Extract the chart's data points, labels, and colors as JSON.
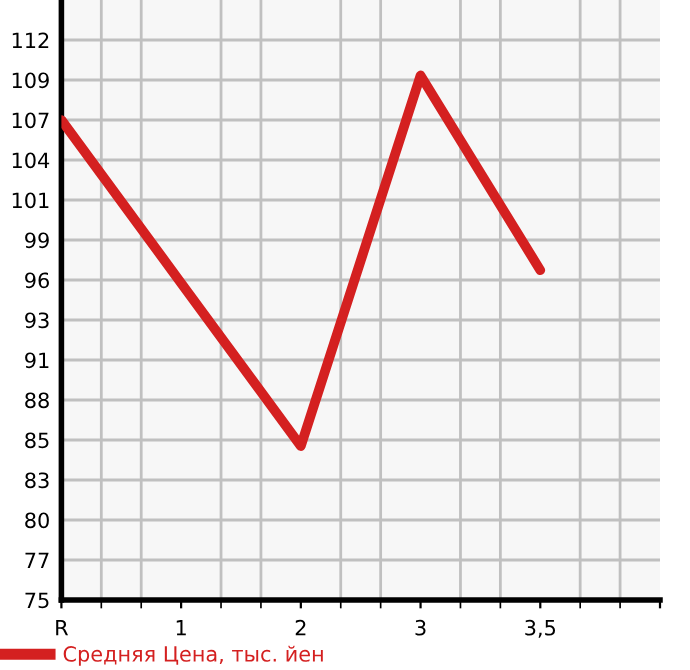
{
  "chart_data": {
    "type": "line",
    "categories": [
      "R",
      "1",
      "2",
      "3",
      "3,5",
      null
    ],
    "series": [
      {
        "name": "Средняя Цена, тыс. йен",
        "color": "#d42020",
        "values": [
          106.55,
          95.75,
          84.95,
          109.5,
          96.6,
          null
        ]
      }
    ],
    "ylim": [
      74.75,
      114.5
    ],
    "yticks": [
      {
        "value": 74.75,
        "label": "75"
      },
      {
        "value": 77.4,
        "label": "77"
      },
      {
        "value": 80.05,
        "label": "80"
      },
      {
        "value": 82.7,
        "label": "83"
      },
      {
        "value": 85.35,
        "label": "85"
      },
      {
        "value": 88.0,
        "label": "88"
      },
      {
        "value": 90.65,
        "label": "91"
      },
      {
        "value": 93.3,
        "label": "93"
      },
      {
        "value": 95.95,
        "label": "96"
      },
      {
        "value": 98.6,
        "label": "99"
      },
      {
        "value": 101.25,
        "label": "101"
      },
      {
        "value": 103.9,
        "label": "104"
      },
      {
        "value": 106.55,
        "label": "107"
      },
      {
        "value": 109.2,
        "label": "109"
      },
      {
        "value": 111.85,
        "label": "112"
      }
    ],
    "grid": true,
    "legend": "bottom",
    "marker": "none",
    "line_style": "solid"
  }
}
